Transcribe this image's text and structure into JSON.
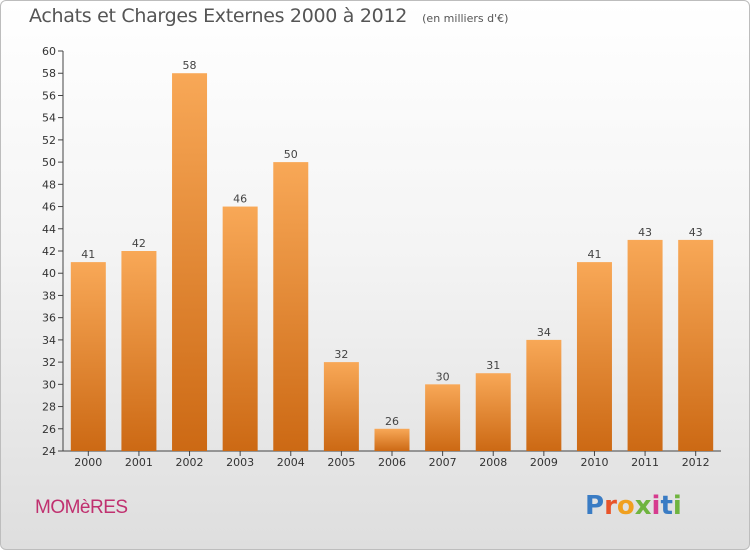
{
  "header": {
    "title": "Achats et Charges Externes 2000 à 2012",
    "unit": "(en milliers d'€)"
  },
  "footer": {
    "commune": "MOMèRES",
    "logo_text": "Proxiti",
    "logo_colors": [
      "#3a7cc4",
      "#e8542a",
      "#f0a020",
      "#6fb43f",
      "#d63b8e",
      "#3a7cc4",
      "#6fb43f"
    ]
  },
  "colors": {
    "bar_light": "#f8a857",
    "bar_dark": "#cc6914",
    "axis": "#444444",
    "grid": "#c8c8c8"
  },
  "chart_data": {
    "type": "bar",
    "title": "Achats et Charges Externes 2000 à 2012",
    "subtitle": "(en milliers d'€)",
    "categories": [
      "2000",
      "2001",
      "2002",
      "2003",
      "2004",
      "2005",
      "2006",
      "2007",
      "2008",
      "2009",
      "2010",
      "2011",
      "2012"
    ],
    "values": [
      41,
      42,
      58,
      46,
      50,
      32,
      26,
      30,
      31,
      34,
      41,
      43,
      43
    ],
    "ylim": [
      24,
      60
    ],
    "yticks": [
      24,
      26,
      28,
      30,
      32,
      34,
      36,
      38,
      40,
      42,
      44,
      46,
      48,
      50,
      52,
      54,
      56,
      58,
      60
    ],
    "grid": false,
    "legend": "none"
  }
}
